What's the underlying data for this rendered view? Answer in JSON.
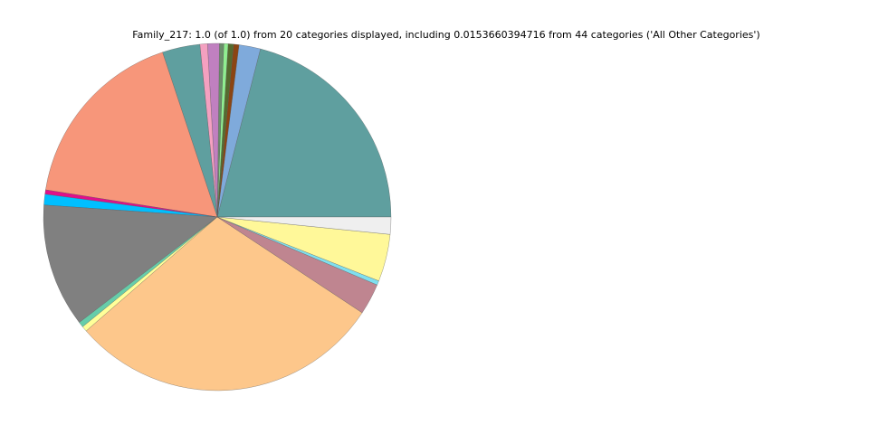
{
  "chart_data": {
    "type": "pie",
    "title": "Family_217: 1.0 (of 1.0) from 20 categories displayed, including 0.0153660394716 from 44 categories ('All Other Categories')",
    "start_angle": 0,
    "direction": "counterclockwise",
    "values": [
      0.21,
      0.02,
      0.005,
      0.005,
      0.004,
      0.004,
      0.011,
      0.007,
      0.035,
      0.174,
      0.004,
      0.01,
      0.115,
      0.005,
      0.005,
      0.293,
      0.029,
      0.004,
      0.044,
      0.016
    ],
    "colors": [
      "#5f9f9f",
      "#7faadb",
      "#8b4513",
      "#556b2f",
      "#90ee90",
      "#6b8e6b",
      "#c080c0",
      "#f4a0c0",
      "#5f9f9f",
      "#f7967a",
      "#e0108a",
      "#00bfff",
      "#808080",
      "#66cdaa",
      "#ffff99",
      "#fdc78b",
      "#bf8590",
      "#7fdfef",
      "#fff899",
      "#efefef"
    ]
  }
}
